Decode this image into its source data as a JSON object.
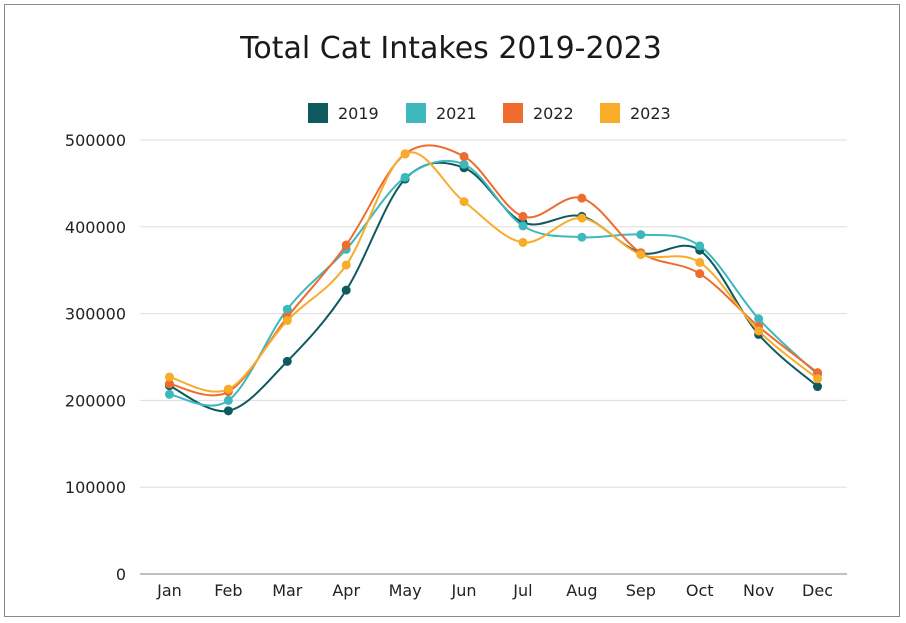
{
  "chart_data": {
    "type": "line",
    "title": "Total Cat Intakes 2019-2023",
    "xlabel": "",
    "ylabel": "",
    "categories": [
      "Jan",
      "Feb",
      "Mar",
      "Apr",
      "May",
      "Jun",
      "Jul",
      "Aug",
      "Sep",
      "Oct",
      "Nov",
      "Dec"
    ],
    "ylim": [
      0,
      500000
    ],
    "yticks": [
      "0",
      "100000",
      "200000",
      "300000",
      "400000",
      "500000"
    ],
    "grid": true,
    "legend_position": "top-center",
    "smooth": true,
    "series": [
      {
        "name": "2019",
        "color": "#0f5a5e",
        "values": [
          217000,
          188000,
          245000,
          327000,
          455000,
          468000,
          405000,
          412000,
          370000,
          373000,
          276000,
          216000
        ]
      },
      {
        "name": "2021",
        "color": "#3db8bd",
        "values": [
          207000,
          200000,
          305000,
          374000,
          457000,
          472000,
          401000,
          388000,
          391000,
          378000,
          294000,
          230000
        ]
      },
      {
        "name": "2022",
        "color": "#ef6c2f",
        "values": [
          219000,
          210000,
          296000,
          379000,
          484000,
          481000,
          412000,
          433000,
          370000,
          346000,
          285000,
          232000
        ]
      },
      {
        "name": "2023",
        "color": "#f9ab2a",
        "values": [
          227000,
          213000,
          292000,
          356000,
          484000,
          429000,
          382000,
          410000,
          368000,
          359000,
          280000,
          225000
        ]
      }
    ]
  }
}
